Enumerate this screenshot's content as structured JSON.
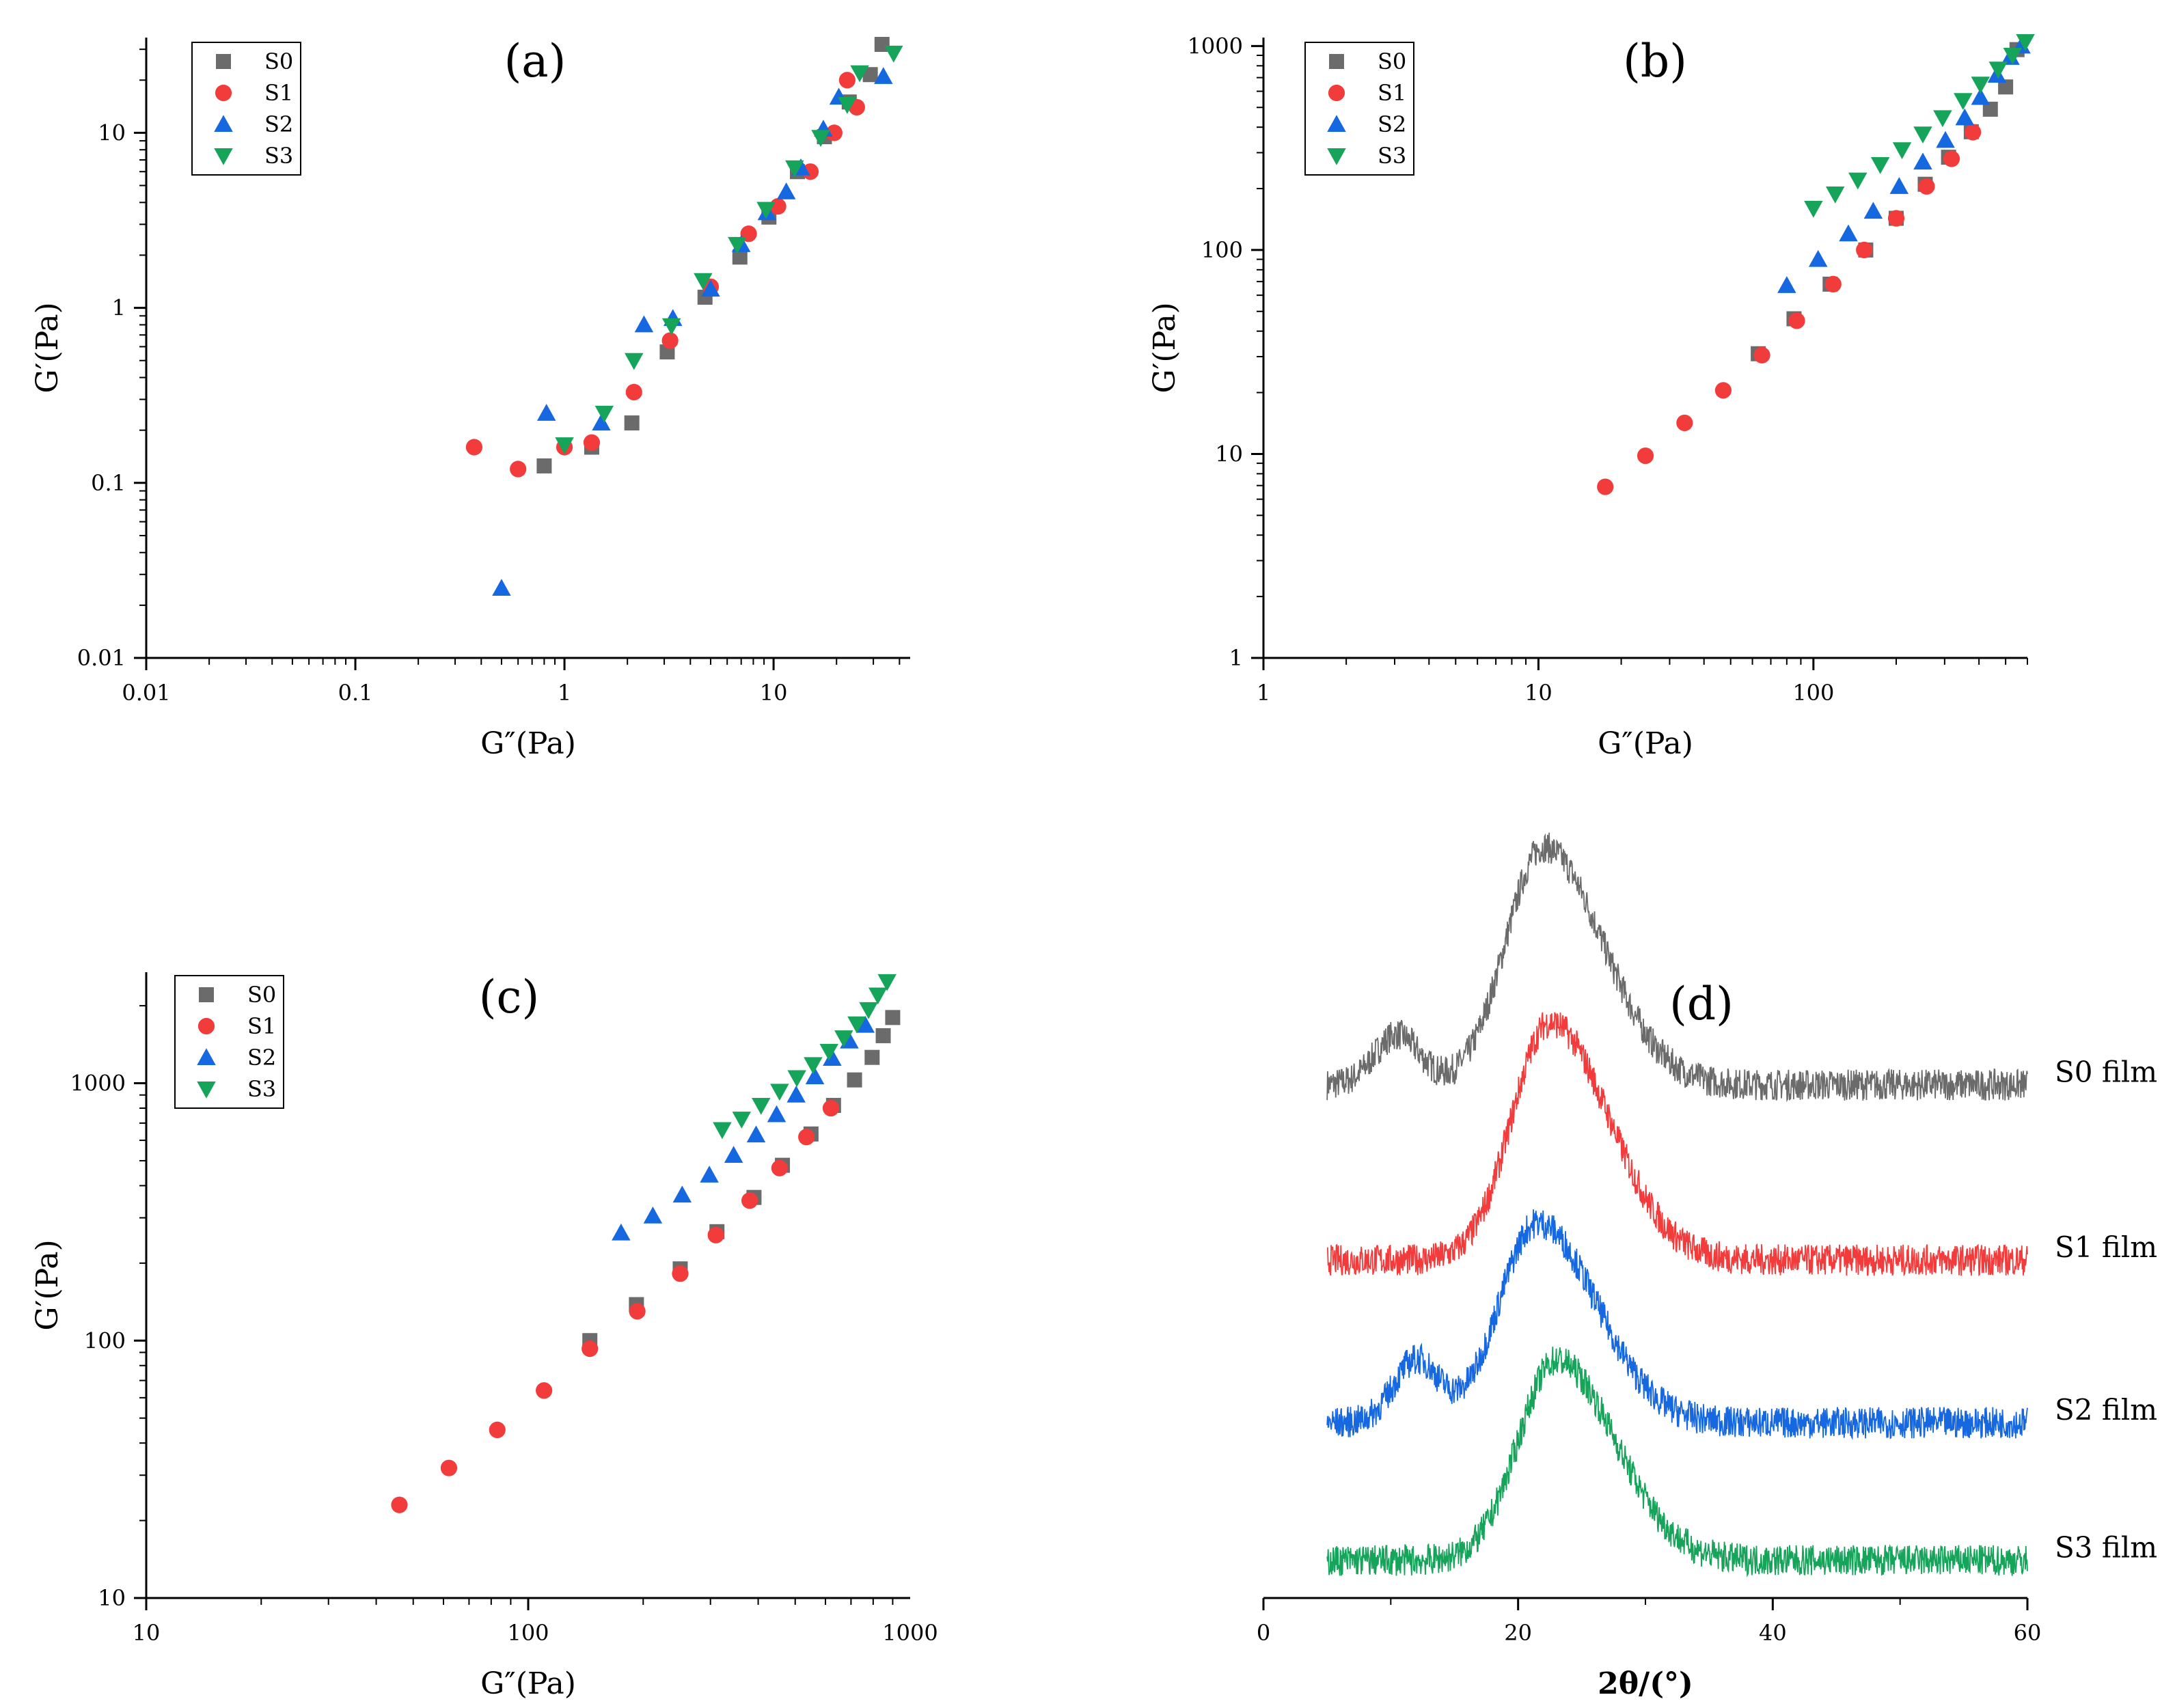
{
  "colors": {
    "S0": "#6b6b6b",
    "S1": "#f23c3c",
    "S2": "#1668e0",
    "S3": "#16a45a"
  },
  "chart_data": [
    {
      "id": "a",
      "type": "scatter",
      "panel_label": "(a)",
      "xscale": "log",
      "yscale": "log",
      "xlabel": "G″(Pa)",
      "ylabel": "G′(Pa)",
      "xlim": [
        0.01,
        45
      ],
      "ylim": [
        0.01,
        35
      ],
      "xticks": [
        {
          "v": 0.01,
          "label": "0.01"
        },
        {
          "v": 0.1,
          "label": "0.1"
        },
        {
          "v": 1,
          "label": "1"
        },
        {
          "v": 10,
          "label": "10"
        }
      ],
      "yticks": [
        {
          "v": 0.01,
          "label": "0.01"
        },
        {
          "v": 0.1,
          "label": "0.1"
        },
        {
          "v": 1,
          "label": "1"
        },
        {
          "v": 10,
          "label": "10"
        }
      ],
      "legend": [
        "S0",
        "S1",
        "S2",
        "S3"
      ],
      "legend_position": "top-left",
      "series": [
        {
          "name": "S0",
          "marker": "square",
          "x": [
            0.8,
            1.35,
            2.1,
            3.1,
            4.7,
            6.9,
            9.5,
            13,
            17.5,
            23,
            29,
            33
          ],
          "y": [
            0.125,
            0.16,
            0.22,
            0.56,
            1.15,
            1.95,
            3.3,
            6.0,
            9.5,
            15,
            21.5,
            32
          ]
        },
        {
          "name": "S1",
          "marker": "circle",
          "x": [
            0.37,
            0.6,
            1.0,
            1.35,
            2.15,
            3.2,
            5.0,
            7.6,
            10.5,
            15,
            19.5,
            22.5,
            25
          ],
          "y": [
            0.16,
            0.12,
            0.16,
            0.17,
            0.33,
            0.65,
            1.32,
            2.65,
            3.8,
            6.0,
            10,
            20,
            14
          ]
        },
        {
          "name": "S2",
          "marker": "triangle-up",
          "x": [
            0.5,
            0.82,
            1.5,
            2.4,
            3.3,
            5.0,
            7.0,
            9.3,
            11.5,
            13.5,
            17.3,
            20.5,
            33.5
          ],
          "y": [
            0.025,
            0.25,
            0.22,
            0.8,
            0.87,
            1.28,
            2.3,
            3.5,
            4.6,
            6.3,
            10.5,
            16,
            21
          ]
        },
        {
          "name": "S3",
          "marker": "triangle-down",
          "x": [
            1.0,
            1.55,
            2.15,
            3.25,
            4.6,
            6.7,
            9.2,
            12.6,
            16.8,
            22.5,
            25.8,
            37.5
          ],
          "y": [
            0.165,
            0.25,
            0.5,
            0.79,
            1.43,
            2.3,
            3.65,
            6.3,
            9.4,
            14.5,
            22,
            28.5
          ]
        }
      ]
    },
    {
      "id": "b",
      "type": "scatter",
      "panel_label": "(b)",
      "xscale": "log",
      "yscale": "log",
      "xlabel": "G″(Pa)",
      "ylabel": "G′(Pa)",
      "xlim": [
        1,
        600
      ],
      "ylim": [
        1,
        1100
      ],
      "xticks": [
        {
          "v": 1,
          "label": "1"
        },
        {
          "v": 10,
          "label": "10"
        },
        {
          "v": 100,
          "label": "100"
        }
      ],
      "yticks": [
        {
          "v": 1,
          "label": "1"
        },
        {
          "v": 10,
          "label": "10"
        },
        {
          "v": 100,
          "label": "100"
        },
        {
          "v": 1000,
          "label": "1000"
        }
      ],
      "legend": [
        "S0",
        "S1",
        "S2",
        "S3"
      ],
      "legend_position": "top-left",
      "series": [
        {
          "name": "S0",
          "marker": "square",
          "x": [
            63,
            85,
            115,
            155,
            200,
            255,
            310,
            375,
            440,
            500,
            550
          ],
          "y": [
            31,
            46,
            68,
            100,
            143,
            210,
            285,
            380,
            490,
            630,
            960
          ]
        },
        {
          "name": "S1",
          "marker": "circle",
          "x": [
            17.5,
            24.5,
            34,
            47,
            65,
            87,
            118,
            153,
            200,
            258,
            318,
            380
          ],
          "y": [
            6.9,
            9.8,
            14.2,
            20.5,
            30.5,
            45,
            68,
            100,
            143,
            205,
            280,
            378
          ]
        },
        {
          "name": "S2",
          "marker": "triangle-up",
          "x": [
            80,
            104,
            134,
            165,
            205,
            250,
            302,
            355,
            405,
            465,
            520,
            570
          ],
          "y": [
            67,
            90,
            120,
            155,
            205,
            270,
            345,
            445,
            560,
            720,
            880,
            1000
          ]
        },
        {
          "name": "S3",
          "marker": "triangle-down",
          "x": [
            100,
            120,
            145,
            175,
            210,
            250,
            295,
            350,
            405,
            470,
            530,
            590
          ],
          "y": [
            160,
            188,
            220,
            262,
            310,
            370,
            445,
            540,
            650,
            770,
            900,
            1050
          ]
        }
      ]
    },
    {
      "id": "c",
      "type": "scatter",
      "panel_label": "(c)",
      "xscale": "log",
      "yscale": "log",
      "xlabel": "G″(Pa)",
      "ylabel": "G′(Pa)",
      "xlim": [
        10,
        1000
      ],
      "ylim": [
        10,
        2700
      ],
      "xticks": [
        {
          "v": 10,
          "label": "10"
        },
        {
          "v": 100,
          "label": "100"
        },
        {
          "v": 1000,
          "label": "1000"
        }
      ],
      "yticks": [
        {
          "v": 10,
          "label": "10"
        },
        {
          "v": 100,
          "label": "100"
        },
        {
          "v": 1000,
          "label": "1000"
        }
      ],
      "legend": [
        "S0",
        "S1",
        "S2",
        "S3"
      ],
      "legend_position": "top-left",
      "series": [
        {
          "name": "S0",
          "marker": "square",
          "x": [
            145,
            192,
            250,
            312,
            390,
            463,
            550,
            630,
            715,
            795,
            850,
            900
          ],
          "y": [
            100,
            138,
            190,
            265,
            360,
            480,
            635,
            820,
            1030,
            1260,
            1530,
            1800
          ]
        },
        {
          "name": "S1",
          "marker": "circle",
          "x": [
            46,
            62,
            83,
            110,
            145,
            193,
            250,
            310,
            380,
            455,
            535,
            620
          ],
          "y": [
            23,
            32,
            45,
            64,
            93,
            130,
            182,
            257,
            350,
            468,
            618,
            800
          ]
        },
        {
          "name": "S2",
          "marker": "triangle-up",
          "x": [
            175,
            212,
            253,
            298,
            345,
            395,
            447,
            503,
            563,
            625,
            693,
            763
          ],
          "y": [
            262,
            305,
            368,
            440,
            525,
            630,
            755,
            900,
            1060,
            1250,
            1460,
            1680
          ]
        },
        {
          "name": "S3",
          "marker": "triangle-down",
          "x": [
            322,
            362,
            407,
            455,
            505,
            557,
            613,
            670,
            725,
            778,
            823,
            870
          ],
          "y": [
            660,
            725,
            820,
            930,
            1050,
            1180,
            1330,
            1500,
            1700,
            1930,
            2200,
            2480
          ]
        }
      ]
    },
    {
      "id": "d",
      "type": "line",
      "panel_label": "(d)",
      "xlabel": "2θ/(°)",
      "ylabel": "",
      "xlim": [
        0,
        60
      ],
      "ylim": [
        0,
        1
      ],
      "xticks": [
        {
          "v": 0,
          "label": "0"
        },
        {
          "v": 20,
          "label": "20"
        },
        {
          "v": 40,
          "label": "40"
        },
        {
          "v": 60,
          "label": "60"
        }
      ],
      "series": [
        {
          "name": "S0",
          "label": "S0 film",
          "baseline": 0.82,
          "peak_2theta": 22,
          "peak_height": 0.38,
          "shoulder_2theta": 10.5,
          "shoulder_height": 0.08
        },
        {
          "name": "S1",
          "label": "S1 film",
          "baseline": 0.54,
          "peak_2theta": 22.5,
          "peak_height": 0.38,
          "shoulder_2theta": 10.5,
          "shoulder_height": 0.0
        },
        {
          "name": "S2",
          "label": "S2 film",
          "baseline": 0.28,
          "peak_2theta": 21.5,
          "peak_height": 0.32,
          "shoulder_2theta": 12,
          "shoulder_height": 0.1
        },
        {
          "name": "S3",
          "label": "S3 film",
          "baseline": 0.06,
          "peak_2theta": 23,
          "peak_height": 0.32,
          "shoulder_2theta": 12,
          "shoulder_height": 0.0
        }
      ]
    }
  ]
}
